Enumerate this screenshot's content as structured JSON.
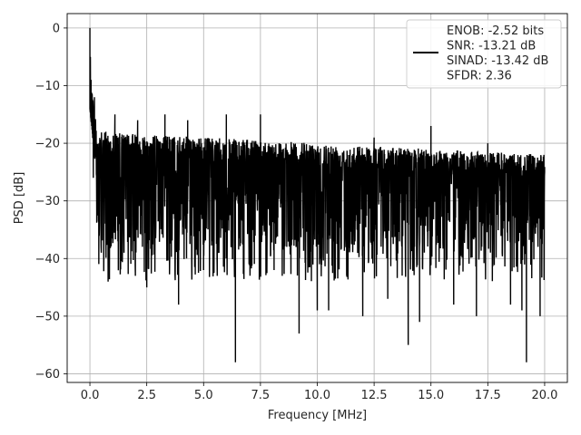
{
  "chart_data": {
    "type": "line",
    "title": "",
    "xlabel": "Frequency [MHz]",
    "ylabel": "PSD [dB]",
    "xlim": [
      -1.0,
      21.0
    ],
    "ylim": [
      -61.5,
      2.5
    ],
    "x_ticks": [
      0.0,
      2.5,
      5.0,
      7.5,
      10.0,
      12.5,
      15.0,
      17.5,
      20.0
    ],
    "x_tick_labels": [
      "0.0",
      "2.5",
      "5.0",
      "7.5",
      "10.0",
      "12.5",
      "15.0",
      "17.5",
      "20.0"
    ],
    "y_ticks": [
      0,
      -10,
      -20,
      -30,
      -40,
      -50,
      -60
    ],
    "y_tick_labels": [
      "0",
      "−10",
      "−20",
      "−30",
      "−40",
      "−50",
      "−60"
    ],
    "grid": true,
    "legend_position": "top-right",
    "legend_entries": [
      "ENOB: -2.52 bits",
      "SNR: -13.21 dB",
      "SINAD: -13.42 dB",
      "SFDR: 2.36"
    ],
    "series": [
      {
        "name": "ENOB: -2.52 bits",
        "color": "#000000",
        "noise_floor_db": [
          -26,
          -32
        ],
        "peak_envelope_db": [
          -18,
          -22
        ],
        "points": [
          [
            0.0,
            0.0
          ],
          [
            0.02,
            -5
          ],
          [
            0.05,
            -9
          ],
          [
            0.08,
            -14
          ],
          [
            0.12,
            -19
          ],
          [
            0.15,
            -26
          ],
          [
            0.2,
            -12
          ],
          [
            0.3,
            -32
          ],
          [
            0.4,
            -20
          ],
          [
            0.5,
            -39
          ],
          [
            0.7,
            -18
          ],
          [
            0.8,
            -44
          ],
          [
            1.1,
            -15
          ],
          [
            1.5,
            -39
          ],
          [
            2.0,
            -43
          ],
          [
            2.1,
            -16
          ],
          [
            2.5,
            -45
          ],
          [
            3.3,
            -15
          ],
          [
            3.9,
            -48
          ],
          [
            4.3,
            -16
          ],
          [
            5.0,
            -42
          ],
          [
            5.6,
            -43
          ],
          [
            6.0,
            -15
          ],
          [
            6.4,
            -58
          ],
          [
            7.0,
            -41
          ],
          [
            7.5,
            -15
          ],
          [
            8.1,
            -42
          ],
          [
            9.2,
            -53
          ],
          [
            10.0,
            -49
          ],
          [
            10.5,
            -49
          ],
          [
            11.3,
            -43
          ],
          [
            12.0,
            -50
          ],
          [
            12.5,
            -19
          ],
          [
            13.1,
            -47
          ],
          [
            14.0,
            -55
          ],
          [
            14.5,
            -51
          ],
          [
            15.0,
            -17
          ],
          [
            16.0,
            -48
          ],
          [
            17.0,
            -50
          ],
          [
            17.5,
            -20
          ],
          [
            18.5,
            -48
          ],
          [
            19.0,
            -49
          ],
          [
            19.2,
            -58
          ],
          [
            19.8,
            -50
          ],
          [
            20.0,
            -25
          ]
        ]
      }
    ]
  }
}
